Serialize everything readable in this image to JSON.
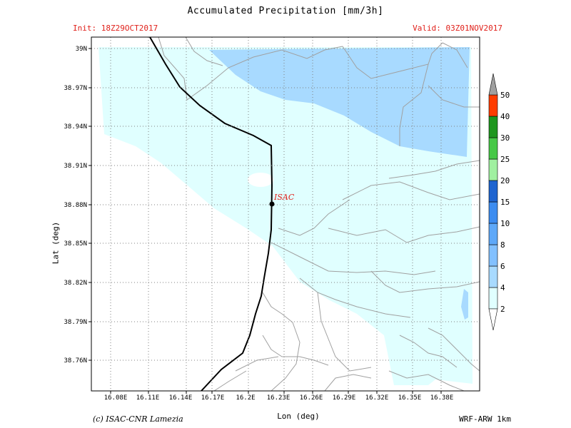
{
  "header": {
    "title": "Accumulated Precipitation [mm/3h]",
    "init": "Init: 18Z29OCT2017",
    "valid": "Valid: 03Z01NOV2017"
  },
  "axes": {
    "xlabel": "Lon (deg)",
    "ylabel": "Lat (deg)",
    "x_ticks": [
      "16.08E",
      "16.11E",
      "16.14E",
      "16.17E",
      "16.2E",
      "16.23E",
      "16.26E",
      "16.29E",
      "16.32E",
      "16.35E",
      "16.38E"
    ],
    "y_ticks": [
      "39N",
      "38.97N",
      "38.94N",
      "38.91N",
      "38.88N",
      "38.85N",
      "38.82N",
      "38.79N",
      "38.76N"
    ]
  },
  "colorbar": {
    "labels": [
      "2",
      "4",
      "6",
      "8",
      "10",
      "15",
      "20",
      "25",
      "30",
      "40",
      "50"
    ],
    "colors": [
      "#ffffff",
      "#e0ffff",
      "#a8daff",
      "#82c0ff",
      "#5ea8f8",
      "#3c8cf0",
      "#1e64d0",
      "#a0f0a0",
      "#46c846",
      "#1e961e",
      "#ff3c00"
    ],
    "top_color": "#a0a0a0"
  },
  "map": {
    "station_label": "ISAC",
    "station_color": "#e0201a"
  },
  "footer": {
    "credit": "(c) ISAC-CNR Lamezia",
    "model": "WRF-ARW 1km"
  }
}
